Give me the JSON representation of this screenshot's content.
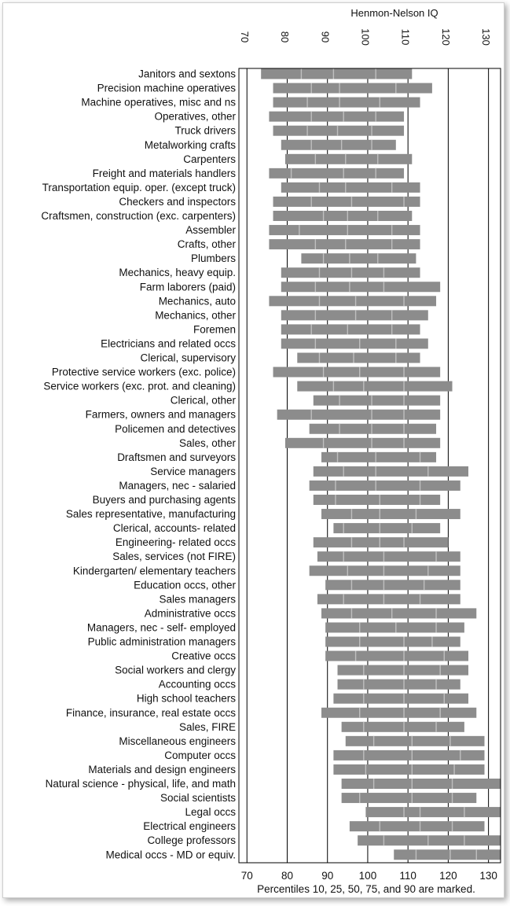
{
  "chart_data": {
    "type": "bar",
    "title": "Henmon-Nelson IQ",
    "xlabel": "Henmon-Nelson IQ",
    "note": "Percentiles 10, 25, 50, 75, and 90 are marked.",
    "xlim": [
      68,
      133
    ],
    "ticks": [
      70,
      80,
      90,
      100,
      110,
      120,
      130
    ],
    "bar_color": "#8c8c8c",
    "divider_color": "#bfbfbf",
    "series_fields": [
      "p10",
      "p25",
      "p50",
      "p75",
      "p90"
    ],
    "rows": [
      {
        "label": "Janitors and sextons",
        "p10": 73.5,
        "p25": 83.5,
        "p50": 91.5,
        "p75": 102,
        "p90": 111
      },
      {
        "label": "Precision machine operatives",
        "p10": 76.5,
        "p25": 86,
        "p50": 93,
        "p75": 107,
        "p90": 116
      },
      {
        "label": "Machine operatives, misc and ns",
        "p10": 76.5,
        "p25": 85,
        "p50": 93,
        "p75": 103,
        "p90": 113
      },
      {
        "label": "Operatives, other",
        "p10": 75.5,
        "p25": 86,
        "p50": 94,
        "p75": 102,
        "p90": 109
      },
      {
        "label": "Truck drivers",
        "p10": 76.5,
        "p25": 85,
        "p50": 92.5,
        "p75": 101,
        "p90": 109
      },
      {
        "label": "Metalworking crafts",
        "p10": 78.5,
        "p25": 86,
        "p50": 93.5,
        "p75": 101,
        "p90": 107
      },
      {
        "label": "Carpenters",
        "p10": 79.5,
        "p25": 87,
        "p50": 94.5,
        "p75": 102.5,
        "p90": 111
      },
      {
        "label": "Freight and materials handlers",
        "p10": 75.5,
        "p25": 81,
        "p50": 94,
        "p75": 102,
        "p90": 109
      },
      {
        "label": "Transportation equip. oper. (except truck)",
        "p10": 78.5,
        "p25": 88,
        "p50": 94.5,
        "p75": 106,
        "p90": 113
      },
      {
        "label": "Checkers and inspectors",
        "p10": 76.5,
        "p25": 86,
        "p50": 96,
        "p75": 109,
        "p90": 113
      },
      {
        "label": "Craftsmen, construction (exc. carpenters)",
        "p10": 76.5,
        "p25": 89,
        "p50": 95,
        "p75": 102.5,
        "p90": 111
      },
      {
        "label": "Assembler",
        "p10": 75.5,
        "p25": 83,
        "p50": 95,
        "p75": 106,
        "p90": 113
      },
      {
        "label": "Crafts, other",
        "p10": 75.5,
        "p25": 87,
        "p50": 94.5,
        "p75": 106,
        "p90": 113
      },
      {
        "label": "Plumbers",
        "p10": 83.5,
        "p25": 89,
        "p50": 95.5,
        "p75": 102.5,
        "p90": 112
      },
      {
        "label": "Mechanics, heavy equip.",
        "p10": 78.5,
        "p25": 88,
        "p50": 96,
        "p75": 104,
        "p90": 113
      },
      {
        "label": "Farm laborers (paid)",
        "p10": 78.5,
        "p25": 87,
        "p50": 95.5,
        "p75": 104,
        "p90": 118
      },
      {
        "label": "Mechanics, auto",
        "p10": 75.5,
        "p25": 88,
        "p50": 97,
        "p75": 109,
        "p90": 117
      },
      {
        "label": "Mechanics, other",
        "p10": 78.5,
        "p25": 87,
        "p50": 97,
        "p75": 106,
        "p90": 115
      },
      {
        "label": "Foremen",
        "p10": 78.5,
        "p25": 86,
        "p50": 95,
        "p75": 106,
        "p90": 113
      },
      {
        "label": "Electricians and related occs",
        "p10": 78.5,
        "p25": 87,
        "p50": 98,
        "p75": 107,
        "p90": 115
      },
      {
        "label": "Clerical, supervisory",
        "p10": 82.5,
        "p25": 88,
        "p50": 96.5,
        "p75": 107,
        "p90": 113
      },
      {
        "label": "Protective service workers (exc. police)",
        "p10": 76.5,
        "p25": 89,
        "p50": 98,
        "p75": 109,
        "p90": 118
      },
      {
        "label": "Service workers (exc. prot. and cleaning)",
        "p10": 82.5,
        "p25": 91.5,
        "p50": 99,
        "p75": 109,
        "p90": 121
      },
      {
        "label": "Clerical, other",
        "p10": 86.5,
        "p25": 93,
        "p50": 101,
        "p75": 109,
        "p90": 118
      },
      {
        "label": "Farmers, owners and managers",
        "p10": 77.5,
        "p25": 86,
        "p50": 101,
        "p75": 109,
        "p90": 118
      },
      {
        "label": "Policemen and detectives",
        "p10": 85.5,
        "p25": 93,
        "p50": 101,
        "p75": 109,
        "p90": 117
      },
      {
        "label": "Sales, other",
        "p10": 79.5,
        "p25": 89,
        "p50": 101,
        "p75": 109,
        "p90": 118
      },
      {
        "label": "Draftsmen and surveyors",
        "p10": 88.5,
        "p25": 92.5,
        "p50": 102,
        "p75": 113,
        "p90": 117
      },
      {
        "label": "Service managers",
        "p10": 86.5,
        "p25": 94,
        "p50": 102,
        "p75": 115,
        "p90": 125
      },
      {
        "label": "Managers, nec - salaried",
        "p10": 85.5,
        "p25": 92,
        "p50": 102,
        "p75": 113,
        "p90": 123
      },
      {
        "label": "Buyers and purchasing agents",
        "p10": 86.5,
        "p25": 92,
        "p50": 103,
        "p75": 113,
        "p90": 118
      },
      {
        "label": "Sales representative, manufacturing",
        "p10": 88.5,
        "p25": 96,
        "p50": 103,
        "p75": 112,
        "p90": 123
      },
      {
        "label": "Clerical, accounts- related",
        "p10": 91.5,
        "p25": 94,
        "p50": 103,
        "p75": 111,
        "p90": 118
      },
      {
        "label": "Engineering- related occs",
        "p10": 86.5,
        "p25": 96,
        "p50": 103,
        "p75": 109,
        "p90": 120
      },
      {
        "label": "Sales, services (not FIRE)",
        "p10": 87.5,
        "p25": 94,
        "p50": 104,
        "p75": 117,
        "p90": 123
      },
      {
        "label": "Kindergarten/ elementary teachers",
        "p10": 85.5,
        "p25": 95,
        "p50": 104,
        "p75": 115,
        "p90": 123
      },
      {
        "label": "Education occs, other",
        "p10": 89.5,
        "p25": 96,
        "p50": 104,
        "p75": 114,
        "p90": 123
      },
      {
        "label": "Sales managers",
        "p10": 87.5,
        "p25": 94,
        "p50": 104,
        "p75": 113,
        "p90": 123
      },
      {
        "label": "Administrative occs",
        "p10": 88.5,
        "p25": 96,
        "p50": 106,
        "p75": 117,
        "p90": 127
      },
      {
        "label": "Managers, nec - self- employed",
        "p10": 89.5,
        "p25": 98,
        "p50": 107,
        "p75": 117,
        "p90": 124
      },
      {
        "label": "Public administration managers",
        "p10": 89.5,
        "p25": 98,
        "p50": 109,
        "p75": 116,
        "p90": 123
      },
      {
        "label": "Creative occs",
        "p10": 89.5,
        "p25": 97,
        "p50": 109,
        "p75": 119,
        "p90": 125
      },
      {
        "label": "Social workers and clergy",
        "p10": 92.5,
        "p25": 99,
        "p50": 109,
        "p75": 118,
        "p90": 125
      },
      {
        "label": "Accounting occs",
        "p10": 92.5,
        "p25": 99,
        "p50": 109,
        "p75": 117,
        "p90": 123
      },
      {
        "label": "High school teachers",
        "p10": 91.5,
        "p25": 99,
        "p50": 109,
        "p75": 119,
        "p90": 125
      },
      {
        "label": "Finance, insurance, real estate occs",
        "p10": 88.5,
        "p25": 98,
        "p50": 109,
        "p75": 118,
        "p90": 127
      },
      {
        "label": "Sales, FIRE",
        "p10": 93.5,
        "p25": 99,
        "p50": 109,
        "p75": 117,
        "p90": 124
      },
      {
        "label": "Miscellaneous engineers",
        "p10": 94.5,
        "p25": 101.5,
        "p50": 111,
        "p75": 120.5,
        "p90": 129
      },
      {
        "label": "Computer occs",
        "p10": 91.5,
        "p25": 99,
        "p50": 111,
        "p75": 123,
        "p90": 129
      },
      {
        "label": "Materials and design engineers",
        "p10": 91.5,
        "p25": 99.5,
        "p50": 111,
        "p75": 121.5,
        "p90": 129
      },
      {
        "label": "Natural science - physical, life, and math",
        "p10": 93.5,
        "p25": 101.5,
        "p50": 111,
        "p75": 121,
        "p90": 133
      },
      {
        "label": "Social scientists",
        "p10": 93.5,
        "p25": 98,
        "p50": 111,
        "p75": 121,
        "p90": 127
      },
      {
        "label": "Legal occs",
        "p10": 99.5,
        "p25": 109,
        "p50": 113,
        "p75": 124,
        "p90": 133
      },
      {
        "label": "Electrical engineers",
        "p10": 95.5,
        "p25": 103,
        "p50": 113,
        "p75": 121,
        "p90": 129
      },
      {
        "label": "College professors",
        "p10": 97.5,
        "p25": 104,
        "p50": 115,
        "p75": 124,
        "p90": 133
      },
      {
        "label": "Medical occs - MD or equiv.",
        "p10": 106.5,
        "p25": 112,
        "p50": 120.5,
        "p75": 127,
        "p90": 133
      }
    ]
  }
}
